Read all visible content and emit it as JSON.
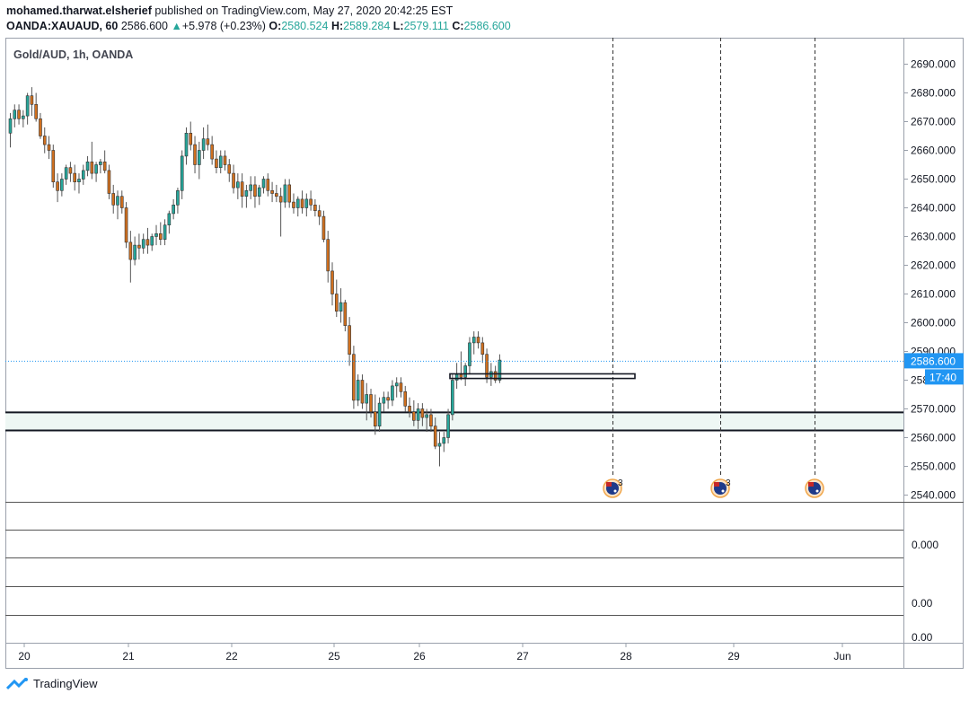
{
  "header": {
    "author": "mohamed.tharwat.elsherief",
    "published_text": "published on TradingView.com, May 27, 2020 20:42:25 EST",
    "symbol": "OANDA:XAUAUD, 60",
    "last": "2586.600",
    "change_arrow": "▲",
    "change": "+5.978 (+0.23%)",
    "open_label": "O:",
    "open": "2580.524",
    "high_label": "H:",
    "high": "2589.284",
    "low_label": "L:",
    "low": "2579.111",
    "close_label": "C:",
    "close": "2586.600"
  },
  "pane_title": "Gold/AUD, 1h, OANDA",
  "price_axis": {
    "ticks": [
      "2690.000",
      "2680.000",
      "2670.000",
      "2660.000",
      "2650.000",
      "2640.000",
      "2630.000",
      "2620.000",
      "2610.000",
      "2600.000",
      "2590.000",
      "2580.000",
      "2570.000",
      "2560.000",
      "2550.000",
      "2540.000"
    ],
    "last_price_label": "2586.600",
    "countdown_label": "17:40"
  },
  "indicator_axis": {
    "label_1": "0.000",
    "label_2": "0.00",
    "label_3": "0.00"
  },
  "time_axis": [
    "20",
    "21",
    "22",
    "25",
    "26",
    "27",
    "28",
    "29",
    "Jun"
  ],
  "event_markers": [
    {
      "icon": "australia-flag-icon",
      "count": "3"
    },
    {
      "icon": "australia-flag-icon",
      "count": "3"
    },
    {
      "icon": "australia-flag-icon",
      "count": ""
    }
  ],
  "colors": {
    "up": "#26a69a",
    "down": "#d0701f",
    "wick": "#555555",
    "last_price": "#2196f3",
    "zone_fill": "#eef7f4"
  },
  "footer": {
    "brand": "TradingView"
  },
  "chart_data": {
    "type": "candlestick",
    "title": "Gold/AUD, 1h, OANDA",
    "y_range": [
      2537,
      2695
    ],
    "x_ticks": [
      "20",
      "21",
      "22",
      "25",
      "26",
      "27",
      "28",
      "29",
      "Jun"
    ],
    "zones": [
      {
        "kind": "support-zone",
        "from": 2562.5,
        "to": 2568.8
      },
      {
        "kind": "rectangle",
        "from": 2580.6,
        "to": 2582.2
      }
    ],
    "last_price": 2586.6,
    "candles_ohlc": [
      [
        2666,
        2673,
        2661,
        2671
      ],
      [
        2671,
        2676,
        2668,
        2674
      ],
      [
        2674,
        2676,
        2669,
        2671
      ],
      [
        2671,
        2674,
        2668,
        2672
      ],
      [
        2672,
        2680,
        2669,
        2679
      ],
      [
        2679,
        2682,
        2672,
        2676
      ],
      [
        2676,
        2680,
        2670,
        2671
      ],
      [
        2671,
        2673,
        2664,
        2665
      ],
      [
        2665,
        2668,
        2659,
        2662
      ],
      [
        2662,
        2665,
        2657,
        2660
      ],
      [
        2660,
        2662,
        2647,
        2649
      ],
      [
        2649,
        2652,
        2642,
        2646
      ],
      [
        2646,
        2652,
        2644,
        2650
      ],
      [
        2650,
        2655,
        2648,
        2654
      ],
      [
        2654,
        2656,
        2649,
        2652
      ],
      [
        2652,
        2655,
        2646,
        2649
      ],
      [
        2649,
        2652,
        2645,
        2650
      ],
      [
        2650,
        2655,
        2648,
        2653
      ],
      [
        2653,
        2658,
        2651,
        2656
      ],
      [
        2656,
        2663,
        2650,
        2652
      ],
      [
        2652,
        2656,
        2649,
        2655
      ],
      [
        2655,
        2657,
        2652,
        2656
      ],
      [
        2656,
        2660,
        2652,
        2653
      ],
      [
        2653,
        2655,
        2643,
        2645
      ],
      [
        2645,
        2648,
        2638,
        2641
      ],
      [
        2641,
        2646,
        2636,
        2644
      ],
      [
        2644,
        2646,
        2638,
        2640
      ],
      [
        2640,
        2642,
        2626,
        2628
      ],
      [
        2628,
        2632,
        2614,
        2622
      ],
      [
        2622,
        2630,
        2620,
        2627
      ],
      [
        2627,
        2631,
        2622,
        2626
      ],
      [
        2626,
        2631,
        2624,
        2629
      ],
      [
        2629,
        2633,
        2624,
        2627
      ],
      [
        2627,
        2631,
        2625,
        2630
      ],
      [
        2630,
        2634,
        2627,
        2631
      ],
      [
        2631,
        2635,
        2627,
        2629
      ],
      [
        2629,
        2636,
        2627,
        2634
      ],
      [
        2634,
        2639,
        2631,
        2638
      ],
      [
        2638,
        2643,
        2636,
        2641
      ],
      [
        2641,
        2647,
        2638,
        2646
      ],
      [
        2646,
        2660,
        2643,
        2658
      ],
      [
        2658,
        2668,
        2655,
        2666
      ],
      [
        2666,
        2670,
        2660,
        2662
      ],
      [
        2662,
        2665,
        2652,
        2655
      ],
      [
        2655,
        2663,
        2650,
        2660
      ],
      [
        2660,
        2668,
        2657,
        2664
      ],
      [
        2664,
        2669,
        2660,
        2662
      ],
      [
        2662,
        2665,
        2655,
        2657
      ],
      [
        2657,
        2660,
        2652,
        2654
      ],
      [
        2654,
        2660,
        2652,
        2658
      ],
      [
        2658,
        2660,
        2653,
        2655
      ],
      [
        2655,
        2657,
        2649,
        2652
      ],
      [
        2652,
        2655,
        2645,
        2647
      ],
      [
        2647,
        2652,
        2643,
        2649
      ],
      [
        2649,
        2652,
        2640,
        2644
      ],
      [
        2644,
        2648,
        2640,
        2646
      ],
      [
        2646,
        2651,
        2643,
        2648
      ],
      [
        2648,
        2651,
        2640,
        2644
      ],
      [
        2644,
        2648,
        2641,
        2647
      ],
      [
        2647,
        2651,
        2645,
        2650
      ],
      [
        2650,
        2652,
        2644,
        2646
      ],
      [
        2646,
        2649,
        2642,
        2645
      ],
      [
        2645,
        2648,
        2642,
        2644
      ],
      [
        2644,
        2647,
        2630,
        2642
      ],
      [
        2642,
        2650,
        2640,
        2648
      ],
      [
        2648,
        2650,
        2640,
        2642
      ],
      [
        2642,
        2645,
        2638,
        2640
      ],
      [
        2640,
        2644,
        2637,
        2643
      ],
      [
        2643,
        2646,
        2638,
        2640
      ],
      [
        2640,
        2645,
        2637,
        2643
      ],
      [
        2643,
        2646,
        2639,
        2641
      ],
      [
        2641,
        2643,
        2637,
        2639
      ],
      [
        2639,
        2641,
        2634,
        2637
      ],
      [
        2637,
        2639,
        2628,
        2629
      ],
      [
        2629,
        2632,
        2614,
        2618
      ],
      [
        2618,
        2621,
        2606,
        2610
      ],
      [
        2610,
        2615,
        2602,
        2604
      ],
      [
        2604,
        2612,
        2600,
        2607
      ],
      [
        2607,
        2608,
        2597,
        2599
      ],
      [
        2599,
        2602,
        2585,
        2589
      ],
      [
        2589,
        2592,
        2570,
        2573
      ],
      [
        2573,
        2582,
        2571,
        2580
      ],
      [
        2580,
        2582,
        2570,
        2572
      ],
      [
        2572,
        2579,
        2566,
        2575
      ],
      [
        2575,
        2577,
        2567,
        2569
      ],
      [
        2569,
        2575,
        2561,
        2564
      ],
      [
        2564,
        2574,
        2562,
        2572
      ],
      [
        2572,
        2576,
        2569,
        2574
      ],
      [
        2574,
        2576,
        2570,
        2573
      ],
      [
        2573,
        2580,
        2571,
        2578
      ],
      [
        2578,
        2581,
        2574,
        2579
      ],
      [
        2579,
        2581,
        2574,
        2576
      ],
      [
        2576,
        2578,
        2569,
        2571
      ],
      [
        2571,
        2574,
        2567,
        2569
      ],
      [
        2569,
        2573,
        2564,
        2566
      ],
      [
        2566,
        2572,
        2563,
        2570
      ],
      [
        2570,
        2572,
        2564,
        2567
      ],
      [
        2567,
        2570,
        2562,
        2568
      ],
      [
        2568,
        2570,
        2562,
        2564
      ],
      [
        2564,
        2567,
        2556,
        2557
      ],
      [
        2557,
        2562,
        2550,
        2558
      ],
      [
        2558,
        2562,
        2555,
        2560
      ],
      [
        2560,
        2570,
        2558,
        2568
      ],
      [
        2568,
        2582,
        2566,
        2580
      ],
      [
        2580,
        2586,
        2577,
        2582
      ],
      [
        2582,
        2590,
        2580,
        2581
      ],
      [
        2581,
        2586,
        2578,
        2585
      ],
      [
        2585,
        2595,
        2582,
        2593
      ],
      [
        2593,
        2597,
        2589,
        2595
      ],
      [
        2595,
        2597,
        2591,
        2593
      ],
      [
        2593,
        2595,
        2586,
        2589
      ],
      [
        2589,
        2591,
        2579,
        2581
      ],
      [
        2581,
        2586,
        2578,
        2583
      ],
      [
        2583,
        2585,
        2579,
        2580
      ],
      [
        2580,
        2589,
        2579,
        2587
      ]
    ]
  }
}
